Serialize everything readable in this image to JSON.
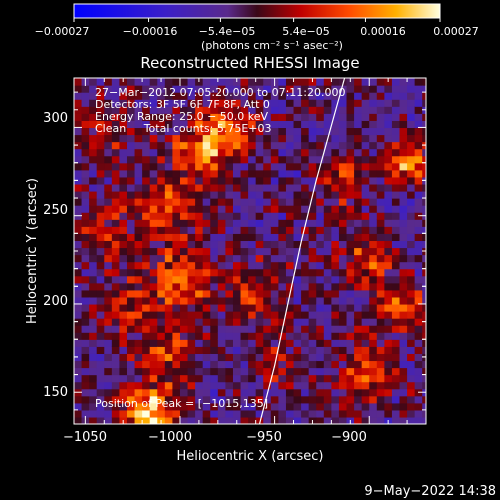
{
  "chart_data": {
    "type": "heatmap",
    "title": "Reconstructed RHESSI Image",
    "xlabel": "Heliocentric X (arcsec)",
    "ylabel": "Heliocentric Y (arcsec)",
    "xlim": [
      -1056,
      -870
    ],
    "ylim": [
      132,
      328
    ],
    "x_ticks": [
      -1050,
      -1000,
      -950,
      -900
    ],
    "x_tick_labels": [
      "−1050",
      "−1000",
      "−950",
      "−900"
    ],
    "y_ticks": [
      150,
      200,
      250,
      300
    ],
    "y_tick_labels": [
      "150",
      "200",
      "250",
      "300"
    ],
    "colorbar": {
      "range": [
        -0.00027,
        0.00027
      ],
      "ticks": [
        -0.00027,
        -0.00016,
        -5.4e-05,
        5.4e-05,
        0.00016,
        0.00027
      ],
      "tick_labels": [
        "−0.00027",
        "−0.00016",
        "−5.4e−05",
        "5.4e−05",
        "0.00016",
        "0.00027"
      ],
      "unit_label": "(photons cm⁻² s⁻¹ asec⁻²)"
    },
    "annotations": [
      "27−Mar−2012 07:05:20.000 to 07:11:20.000",
      "Detectors: 3F 5F 6F 7F 8F, Att 0",
      "Energy Range: 25.0 − 50.0 keV",
      "Clean     Total counts: 5.75E+03"
    ],
    "peak_label": "Position of Peak = [−1015,135]",
    "peak": [
      -1015,
      135
    ],
    "limb_curve": [
      [
        -958,
        132
      ],
      [
        -950,
        165
      ],
      [
        -943,
        200
      ],
      [
        -936,
        235
      ],
      [
        -928,
        270
      ],
      [
        -919,
        305
      ],
      [
        -913,
        328
      ]
    ],
    "grid": false,
    "emission_sources": [
      {
        "x": -1015,
        "y": 138,
        "amp": 1.0,
        "s": 10
      },
      {
        "x": -1008,
        "y": 172,
        "amp": 0.55,
        "s": 11
      },
      {
        "x": -1000,
        "y": 215,
        "amp": 0.6,
        "s": 13
      },
      {
        "x": -1010,
        "y": 255,
        "amp": 0.55,
        "s": 12
      },
      {
        "x": -990,
        "y": 285,
        "amp": 0.7,
        "s": 10
      },
      {
        "x": -975,
        "y": 300,
        "amp": 0.65,
        "s": 10
      },
      {
        "x": -1040,
        "y": 240,
        "amp": 0.45,
        "s": 9
      },
      {
        "x": -1040,
        "y": 300,
        "amp": 0.4,
        "s": 9
      },
      {
        "x": -1030,
        "y": 200,
        "amp": 0.45,
        "s": 9
      },
      {
        "x": -960,
        "y": 205,
        "amp": 0.45,
        "s": 11
      },
      {
        "x": -950,
        "y": 165,
        "amp": 0.3,
        "s": 9
      },
      {
        "x": -915,
        "y": 270,
        "amp": 0.45,
        "s": 9
      },
      {
        "x": -900,
        "y": 225,
        "amp": 0.5,
        "s": 9
      },
      {
        "x": -885,
        "y": 200,
        "amp": 0.6,
        "s": 9
      },
      {
        "x": -880,
        "y": 280,
        "amp": 0.75,
        "s": 8
      },
      {
        "x": -900,
        "y": 160,
        "amp": 0.5,
        "s": 10
      }
    ]
  },
  "timestamp": "9−May−2022 14:38"
}
